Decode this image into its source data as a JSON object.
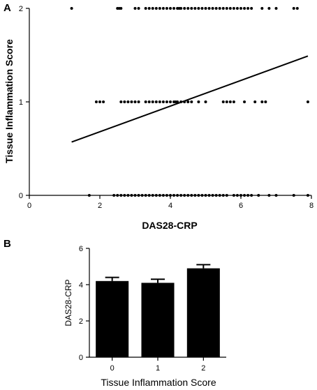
{
  "chart_data": [
    {
      "panel": "A",
      "type": "scatter",
      "xlabel": "DAS28-CRP",
      "ylabel": "Tissue Inflammation Score",
      "xlim": [
        0,
        8
      ],
      "ylim": [
        0,
        2
      ],
      "xticks": [
        "0",
        "2",
        "4",
        "6",
        "8"
      ],
      "yticks": [
        "0",
        "1",
        "2"
      ],
      "grid": false,
      "series": [
        {
          "points": [
            [
              1.2,
              2
            ],
            [
              2.5,
              2
            ],
            [
              2.55,
              2
            ],
            [
              2.6,
              2
            ],
            [
              3.0,
              2
            ],
            [
              3.1,
              2
            ],
            [
              3.3,
              2
            ],
            [
              3.4,
              2
            ],
            [
              3.5,
              2
            ],
            [
              3.6,
              2
            ],
            [
              3.7,
              2
            ],
            [
              3.8,
              2
            ],
            [
              3.9,
              2
            ],
            [
              4.0,
              2
            ],
            [
              4.1,
              2
            ],
            [
              4.2,
              2
            ],
            [
              4.25,
              2
            ],
            [
              4.3,
              2
            ],
            [
              4.4,
              2
            ],
            [
              4.5,
              2
            ],
            [
              4.6,
              2
            ],
            [
              4.7,
              2
            ],
            [
              4.8,
              2
            ],
            [
              4.9,
              2
            ],
            [
              5.0,
              2
            ],
            [
              5.1,
              2
            ],
            [
              5.2,
              2
            ],
            [
              5.3,
              2
            ],
            [
              5.4,
              2
            ],
            [
              5.5,
              2
            ],
            [
              5.6,
              2
            ],
            [
              5.7,
              2
            ],
            [
              5.8,
              2
            ],
            [
              5.9,
              2
            ],
            [
              6.0,
              2
            ],
            [
              6.1,
              2
            ],
            [
              6.2,
              2
            ],
            [
              6.3,
              2
            ],
            [
              6.6,
              2
            ],
            [
              6.8,
              2
            ],
            [
              7.0,
              2
            ],
            [
              7.5,
              2
            ],
            [
              7.6,
              2
            ],
            [
              1.9,
              1
            ],
            [
              2.0,
              1
            ],
            [
              2.1,
              1
            ],
            [
              2.6,
              1
            ],
            [
              2.7,
              1
            ],
            [
              2.8,
              1
            ],
            [
              2.9,
              1
            ],
            [
              3.0,
              1
            ],
            [
              3.1,
              1
            ],
            [
              3.3,
              1
            ],
            [
              3.4,
              1
            ],
            [
              3.5,
              1
            ],
            [
              3.6,
              1
            ],
            [
              3.7,
              1
            ],
            [
              3.8,
              1
            ],
            [
              3.9,
              1
            ],
            [
              4.0,
              1
            ],
            [
              4.1,
              1
            ],
            [
              4.15,
              1
            ],
            [
              4.2,
              1
            ],
            [
              4.3,
              1
            ],
            [
              4.4,
              1
            ],
            [
              4.5,
              1
            ],
            [
              4.6,
              1
            ],
            [
              4.8,
              1
            ],
            [
              5.0,
              1
            ],
            [
              5.5,
              1
            ],
            [
              5.6,
              1
            ],
            [
              5.7,
              1
            ],
            [
              5.8,
              1
            ],
            [
              6.1,
              1
            ],
            [
              6.4,
              1
            ],
            [
              6.6,
              1
            ],
            [
              6.7,
              1
            ],
            [
              7.9,
              1
            ],
            [
              1.7,
              0
            ],
            [
              2.4,
              0
            ],
            [
              2.5,
              0
            ],
            [
              2.6,
              0
            ],
            [
              2.7,
              0
            ],
            [
              2.8,
              0
            ],
            [
              2.9,
              0
            ],
            [
              3.0,
              0
            ],
            [
              3.1,
              0
            ],
            [
              3.2,
              0
            ],
            [
              3.3,
              0
            ],
            [
              3.4,
              0
            ],
            [
              3.5,
              0
            ],
            [
              3.6,
              0
            ],
            [
              3.7,
              0
            ],
            [
              3.8,
              0
            ],
            [
              3.9,
              0
            ],
            [
              4.0,
              0
            ],
            [
              4.1,
              0
            ],
            [
              4.2,
              0
            ],
            [
              4.3,
              0
            ],
            [
              4.4,
              0
            ],
            [
              4.5,
              0
            ],
            [
              4.6,
              0
            ],
            [
              4.7,
              0
            ],
            [
              4.8,
              0
            ],
            [
              4.9,
              0
            ],
            [
              5.0,
              0
            ],
            [
              5.1,
              0
            ],
            [
              5.2,
              0
            ],
            [
              5.3,
              0
            ],
            [
              5.4,
              0
            ],
            [
              5.5,
              0
            ],
            [
              5.6,
              0
            ],
            [
              5.8,
              0
            ],
            [
              5.9,
              0
            ],
            [
              6.0,
              0
            ],
            [
              6.1,
              0
            ],
            [
              6.2,
              0
            ],
            [
              6.3,
              0
            ],
            [
              6.5,
              0
            ],
            [
              6.8,
              0
            ],
            [
              7.0,
              0
            ],
            [
              7.5,
              0
            ],
            [
              7.9,
              0
            ]
          ]
        }
      ],
      "regression_line": {
        "x": [
          1.2,
          7.9
        ],
        "y": [
          0.57,
          1.49
        ]
      },
      "color": "#000000"
    },
    {
      "panel": "B",
      "type": "bar",
      "xlabel": "Tissue  Inflammation Score",
      "ylabel": "DAS28-CRP",
      "categories": [
        "0",
        "1",
        "2"
      ],
      "values": [
        4.2,
        4.1,
        4.9
      ],
      "errors": [
        0.2,
        0.2,
        0.2
      ],
      "ylim": [
        0,
        6
      ],
      "yticks": [
        "0",
        "2",
        "4",
        "6"
      ],
      "grid": false,
      "color": "#000000"
    }
  ]
}
